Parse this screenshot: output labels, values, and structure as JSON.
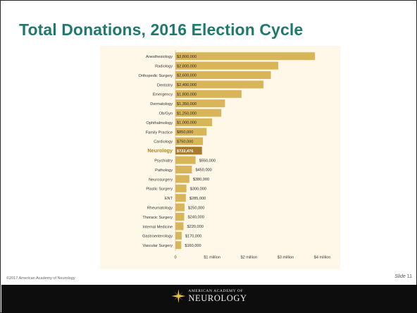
{
  "slide": {
    "title": "Total Donations, 2016 Election Cycle",
    "footer_copyright": "©2017 American Academy of Neurology",
    "slide_word": "Slide",
    "slide_number": "11",
    "logo_line1": "AMERICAN ACADEMY OF",
    "logo_line2": "NEUROLOGY"
  },
  "colors": {
    "title": "#1f7a6d",
    "bar": "#d9b55a",
    "highlight_label": "#b8821e",
    "chart_background": "#fff7e8"
  },
  "chart_data": {
    "type": "bar",
    "orientation": "horizontal",
    "title": "",
    "xlabel": "",
    "ylabel": "",
    "xlim": [
      0,
      4200000
    ],
    "x_ticks": [
      {
        "value": 0,
        "label": "0"
      },
      {
        "value": 1000000,
        "label": "$1 million"
      },
      {
        "value": 2000000,
        "label": "$2 million"
      },
      {
        "value": 3000000,
        "label": "$3 million"
      },
      {
        "value": 4000000,
        "label": "$4 million"
      }
    ],
    "grid": false,
    "categories": [
      "Anesthesiology",
      "Radiology",
      "Orthopedic Surgery",
      "Dentistry",
      "Emergency",
      "Dermatology",
      "Ob/Gyn",
      "Ophthalmology",
      "Family Practice",
      "Cardiology",
      "Neurology",
      "Psychiatry",
      "Pathology",
      "Neurosurgery",
      "Plastic Surgery",
      "ENT",
      "Rheumatology",
      "Thoracic Surgery",
      "Internal Medicine",
      "Gastroenterology",
      "Vascular Surgery"
    ],
    "values": [
      3800000,
      2800000,
      2600000,
      2400000,
      1800000,
      1350000,
      1250000,
      1000000,
      850000,
      750000,
      722476,
      550000,
      450000,
      380000,
      300000,
      285000,
      250000,
      240000,
      220000,
      170000,
      160000
    ],
    "data_labels": [
      "$3,800,000",
      "$2,800,000",
      "$2,600,000",
      "$2,400,000",
      "$1,800,000",
      "$1,350,000",
      "$1,250,000",
      "$1,000,000",
      "$850,000",
      "$750,000",
      "$722,476",
      "$550,000",
      "$450,000",
      "$380,000",
      "$300,000",
      "$285,000",
      "$250,000",
      "$240,000",
      "$220,000",
      "$170,000",
      "$160,000"
    ],
    "highlighted_category": "Neurology"
  }
}
